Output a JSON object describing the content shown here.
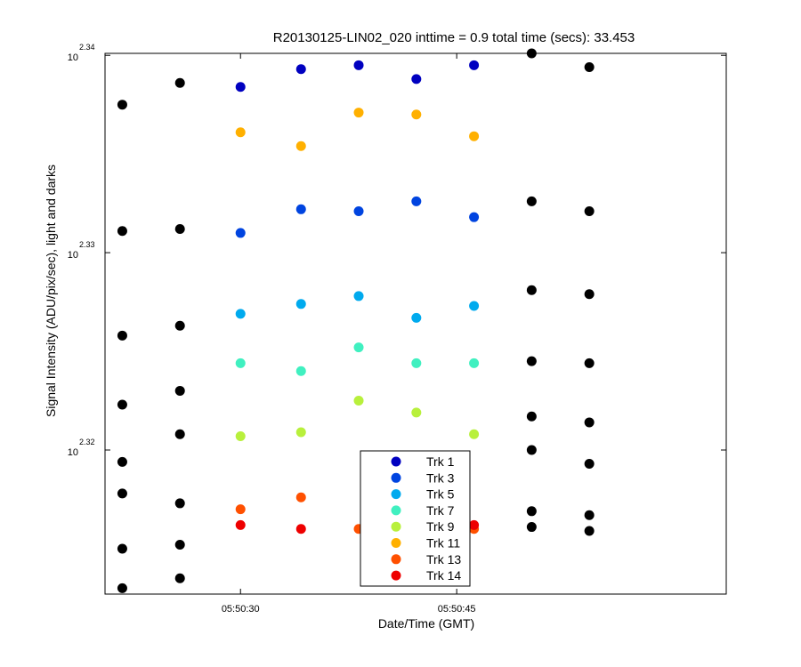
{
  "chart_data": {
    "type": "scatter",
    "title": "R20130125-LIN02_020 inttime = 0.9 total time (secs): 33.453",
    "xlabel": "Date/Time (GMT)",
    "ylabel": "Signal Intensity (ADU/pix/sec), light and darks",
    "y_scale": "log",
    "x_unit": "seconds after 05:50:00 GMT",
    "xlim": [
      20.6,
      63.7
    ],
    "ylim": [
      2.3127,
      2.3401
    ],
    "x_ticks": [
      {
        "value": 30,
        "label": "05:50:30"
      },
      {
        "value": 45,
        "label": "05:50:45"
      }
    ],
    "y_ticks": [
      {
        "value": 2.32,
        "base": "10",
        "exponent": "2.32"
      },
      {
        "value": 2.33,
        "base": "10",
        "exponent": "2.33"
      },
      {
        "value": 2.34,
        "base": "10",
        "exponent": "2.34"
      }
    ],
    "legend_position": "bottom-center",
    "series": [
      {
        "name": "Trk 1",
        "color": "#0000c0",
        "x": [
          30,
          34.2,
          38.2,
          42.2,
          46.2
        ],
        "y": [
          2.3384,
          2.3393,
          2.3395,
          2.3388,
          2.3395
        ]
      },
      {
        "name": "Trk 3",
        "color": "#0044e0",
        "x": [
          30,
          34.2,
          38.2,
          42.2,
          46.2
        ],
        "y": [
          2.331,
          2.3322,
          2.3321,
          2.3326,
          2.3318
        ]
      },
      {
        "name": "Trk 5",
        "color": "#00aaee",
        "x": [
          30,
          34.2,
          38.2,
          42.2,
          46.2
        ],
        "y": [
          2.3269,
          2.3274,
          2.3278,
          2.3267,
          2.3273
        ]
      },
      {
        "name": "Trk 7",
        "color": "#40f0c0",
        "x": [
          30,
          34.2,
          38.2,
          42.2,
          46.2
        ],
        "y": [
          2.3244,
          2.324,
          2.3252,
          2.3244,
          2.3244
        ]
      },
      {
        "name": "Trk 9",
        "color": "#b8f03c",
        "x": [
          30,
          34.2,
          38.2,
          42.2,
          46.2
        ],
        "y": [
          2.3207,
          2.3209,
          2.3225,
          2.3219,
          2.3208
        ]
      },
      {
        "name": "Trk 11",
        "color": "#ffb000",
        "x": [
          30,
          34.2,
          38.2,
          42.2,
          46.2
        ],
        "y": [
          2.3361,
          2.3354,
          2.3371,
          2.337,
          2.3359
        ]
      },
      {
        "name": "Trk 13",
        "color": "#ff5000",
        "x": [
          30,
          34.2,
          38.2,
          42.2,
          46.2
        ],
        "y": [
          2.317,
          2.3176,
          2.316,
          2.316,
          2.316
        ]
      },
      {
        "name": "Trk 14",
        "color": "#ee0000",
        "x": [
          30,
          34.2,
          46.2
        ],
        "y": [
          2.3162,
          2.316,
          2.3162
        ]
      },
      {
        "name": "",
        "color": "#000000",
        "x": [
          21.8,
          21.8,
          21.8,
          21.8,
          21.8,
          21.8,
          21.8,
          21.8,
          25.8,
          25.8,
          25.8,
          25.8,
          25.8,
          25.8,
          25.8,
          25.8,
          50.2,
          50.2,
          50.2,
          50.2,
          50.2,
          50.2,
          50.2,
          50.2,
          54.2,
          54.2,
          54.2,
          54.2,
          54.2,
          54.2,
          54.2,
          54.2
        ],
        "y": [
          2.3375,
          2.3311,
          2.3258,
          2.3223,
          2.3194,
          2.3178,
          2.315,
          2.313,
          2.3386,
          2.3312,
          2.3263,
          2.323,
          2.3208,
          2.3173,
          2.3152,
          2.3135,
          2.3401,
          2.3326,
          2.3281,
          2.3245,
          2.3217,
          2.32,
          2.3169,
          2.3161,
          2.3394,
          2.3321,
          2.3279,
          2.3244,
          2.3214,
          2.3193,
          2.3167,
          2.3159
        ]
      }
    ]
  }
}
